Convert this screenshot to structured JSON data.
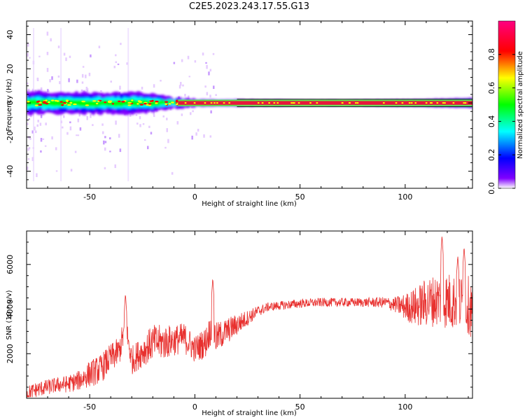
{
  "title": "C2E5.2023.243.17.55.G13",
  "colors": {
    "snr_line": "#e8302e",
    "carrier_band": "#e8163b",
    "carrier_band_edge": "#5de04a"
  },
  "chart_data": [
    {
      "type": "heatmap",
      "title": "C2E5.2023.243.17.55.G13",
      "xlabel": "Height of straight line (km)",
      "ylabel": "Frequency (Hz)",
      "xlim": [
        -80,
        132
      ],
      "ylim": [
        -50,
        48
      ],
      "xticks": [
        -50,
        0,
        50,
        100
      ],
      "xtick_labels": [
        "-50",
        "0",
        "50",
        "100"
      ],
      "yticks": [
        -40,
        -20,
        0,
        20,
        40
      ],
      "ytick_labels": [
        "-40",
        "-20",
        "0",
        "20",
        "40"
      ],
      "grid": false,
      "carrier_frequency_hz": 0,
      "carrier_band_hz": [
        -1.5,
        1.5
      ],
      "spectral_spread_profile": {
        "x": [
          -80,
          -70,
          -60,
          -50,
          -40,
          -30,
          -20,
          -10,
          0,
          20,
          60,
          100,
          120,
          132
        ],
        "half_width_hz": [
          6,
          6,
          6,
          6,
          5.5,
          6,
          5,
          2.5,
          2,
          2,
          1.5,
          2,
          2.5,
          3
        ]
      },
      "colorbar": {
        "label": "Normalized spectral amplitude",
        "range": [
          0,
          1
        ],
        "ticks": [
          0.0,
          0.2,
          0.4,
          0.6,
          0.8
        ],
        "tick_labels": [
          "0.0",
          "0.2",
          "0.4",
          "0.6",
          "0.8"
        ],
        "colormap": [
          "#ffffff",
          "#8000ff",
          "#0000ff",
          "#00ffff",
          "#00ff00",
          "#ffff00",
          "#ff0000",
          "#ff0080"
        ]
      }
    },
    {
      "type": "line",
      "xlabel": "Height of straight line (km)",
      "ylabel": "SNR (10 * v/v)",
      "xlim": [
        -80,
        132
      ],
      "ylim": [
        0,
        7500
      ],
      "xticks": [
        -50,
        0,
        50,
        100
      ],
      "xtick_labels": [
        "-50",
        "0",
        "50",
        "100"
      ],
      "yticks": [
        2000,
        4000,
        6000
      ],
      "ytick_labels": [
        "2000",
        "4000",
        "6000"
      ],
      "grid": false,
      "series": [
        {
          "x": [
            -80,
            -75,
            -70,
            -65,
            -60,
            -55,
            -50,
            -45,
            -40,
            -36,
            -33,
            -30,
            -25,
            -20,
            -15,
            -10,
            -5,
            0,
            5,
            8,
            10,
            15,
            20,
            25,
            30,
            35,
            40,
            50,
            60,
            70,
            80,
            90,
            95,
            100,
            105,
            110,
            115,
            120,
            125,
            130,
            132
          ],
          "values": [
            200,
            400,
            500,
            600,
            650,
            800,
            1100,
            1300,
            1800,
            2100,
            3200,
            1700,
            2100,
            2500,
            2500,
            2600,
            2700,
            2200,
            2500,
            3200,
            2700,
            3000,
            3300,
            3600,
            3900,
            4100,
            4150,
            4250,
            4300,
            4300,
            4300,
            4300,
            4200,
            4100,
            4100,
            4300,
            4400,
            4400,
            4300,
            4200,
            3900
          ],
          "noise_amplitude": [
            350,
            350,
            350,
            350,
            400,
            450,
            600,
            650,
            650,
            650,
            650,
            650,
            700,
            800,
            800,
            700,
            700,
            600,
            700,
            700,
            700,
            600,
            500,
            350,
            250,
            200,
            200,
            200,
            200,
            200,
            200,
            250,
            350,
            600,
            900,
            1100,
            1200,
            1300,
            1300,
            1300,
            1300
          ],
          "peaks": [
            {
              "x": -33,
              "value": 4700
            },
            {
              "x": 8.5,
              "value": 5400
            },
            {
              "x": 117.5,
              "value": 7300
            },
            {
              "x": 128,
              "value": 6800
            },
            {
              "x": 125,
              "value": 6400
            }
          ]
        }
      ]
    }
  ]
}
